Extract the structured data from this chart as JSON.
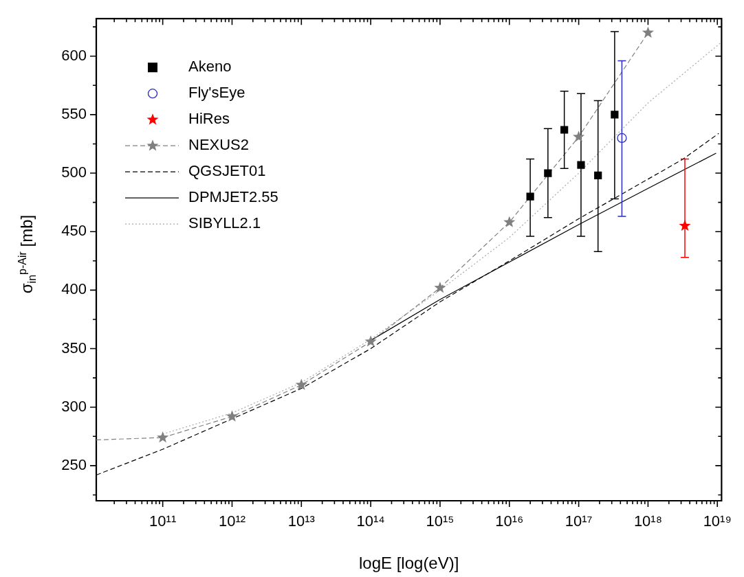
{
  "chart_data": {
    "type": "line",
    "xlabel": "logE [log(eV)]",
    "ylabel": "σ$_{in}$$^{p-Air}$ [mb]",
    "log": "x",
    "xlim": [
      11000000000.0,
      1.15e+19
    ],
    "ylim": [
      220,
      632
    ],
    "xticks": [
      {
        "value": 20000000000.0,
        "label": null
      },
      {
        "value": 30000000000.0,
        "label": null
      },
      {
        "value": 40000000000.0,
        "label": null
      },
      {
        "value": 50000000000.0,
        "label": null
      },
      {
        "value": 60000000000.0,
        "label": null
      },
      {
        "value": 70000000000.0,
        "label": null
      },
      {
        "value": 80000000000.0,
        "label": null
      },
      {
        "value": 90000000000.0,
        "label": null
      },
      {
        "value": 100000000000.0,
        "label": "10¹¹"
      },
      {
        "value": 200000000000.0,
        "label": null
      },
      {
        "value": 300000000000.0,
        "label": null
      },
      {
        "value": 400000000000.0,
        "label": null
      },
      {
        "value": 500000000000.0,
        "label": null
      },
      {
        "value": 600000000000.0,
        "label": null
      },
      {
        "value": 700000000000.0,
        "label": null
      },
      {
        "value": 800000000000.0,
        "label": null
      },
      {
        "value": 900000000000.0,
        "label": null
      },
      {
        "value": 1000000000000.0,
        "label": "10¹²"
      },
      {
        "value": 2000000000000.0,
        "label": null
      },
      {
        "value": 3000000000000.0,
        "label": null
      },
      {
        "value": 4000000000000.0,
        "label": null
      },
      {
        "value": 5000000000000.0,
        "label": null
      },
      {
        "value": 6000000000000.0,
        "label": null
      },
      {
        "value": 7000000000000.0,
        "label": null
      },
      {
        "value": 8000000000000.0,
        "label": null
      },
      {
        "value": 9000000000000.0,
        "label": null
      },
      {
        "value": 10000000000000.0,
        "label": "10¹³"
      },
      {
        "value": 20000000000000.0,
        "label": null
      },
      {
        "value": 30000000000000.0,
        "label": null
      },
      {
        "value": 40000000000000.0,
        "label": null
      },
      {
        "value": 50000000000000.0,
        "label": null
      },
      {
        "value": 60000000000000.0,
        "label": null
      },
      {
        "value": 70000000000000.0,
        "label": null
      },
      {
        "value": 80000000000000.0,
        "label": null
      },
      {
        "value": 90000000000000.0,
        "label": null
      },
      {
        "value": 100000000000000.0,
        "label": "10¹⁴"
      },
      {
        "value": 200000000000000.0,
        "label": null
      },
      {
        "value": 300000000000000.0,
        "label": null
      },
      {
        "value": 400000000000000.0,
        "label": null
      },
      {
        "value": 500000000000000.0,
        "label": null
      },
      {
        "value": 600000000000000.0,
        "label": null
      },
      {
        "value": 700000000000000.0,
        "label": null
      },
      {
        "value": 800000000000000.0,
        "label": null
      },
      {
        "value": 900000000000000.0,
        "label": null
      },
      {
        "value": 1000000000000000.0,
        "label": "10¹⁵"
      },
      {
        "value": 2000000000000000.0,
        "label": null
      },
      {
        "value": 3000000000000000.0,
        "label": null
      },
      {
        "value": 4000000000000000.0,
        "label": null
      },
      {
        "value": 5000000000000000.0,
        "label": null
      },
      {
        "value": 6000000000000000.0,
        "label": null
      },
      {
        "value": 7000000000000000.0,
        "label": null
      },
      {
        "value": 8000000000000000.0,
        "label": null
      },
      {
        "value": 9000000000000000.0,
        "label": null
      },
      {
        "value": 1e+16,
        "label": "10¹⁶"
      },
      {
        "value": 2e+16,
        "label": null
      },
      {
        "value": 3e+16,
        "label": null
      },
      {
        "value": 4e+16,
        "label": null
      },
      {
        "value": 5e+16,
        "label": null
      },
      {
        "value": 6e+16,
        "label": null
      },
      {
        "value": 7e+16,
        "label": null
      },
      {
        "value": 8e+16,
        "label": null
      },
      {
        "value": 9e+16,
        "label": null
      },
      {
        "value": 1e+17,
        "label": "10¹⁷"
      },
      {
        "value": 2e+17,
        "label": null
      },
      {
        "value": 3e+17,
        "label": null
      },
      {
        "value": 4e+17,
        "label": null
      },
      {
        "value": 5e+17,
        "label": null
      },
      {
        "value": 6e+17,
        "label": null
      },
      {
        "value": 7e+17,
        "label": null
      },
      {
        "value": 8e+17,
        "label": null
      },
      {
        "value": 9e+17,
        "label": null
      },
      {
        "value": 1e+18,
        "label": "10¹⁸"
      },
      {
        "value": 2e+18,
        "label": null
      },
      {
        "value": 3e+18,
        "label": null
      },
      {
        "value": 4e+18,
        "label": null
      },
      {
        "value": 5e+18,
        "label": null
      },
      {
        "value": 6e+18,
        "label": null
      },
      {
        "value": 7e+18,
        "label": null
      },
      {
        "value": 8e+18,
        "label": null
      },
      {
        "value": 9e+18,
        "label": null
      },
      {
        "value": 1e+19,
        "label": "10¹⁹"
      }
    ],
    "yticks": [
      {
        "value": 225,
        "label": null
      },
      250,
      {
        "value": 275,
        "label": null
      },
      300,
      {
        "value": 325,
        "label": null
      },
      350,
      {
        "value": 375,
        "label": null
      },
      400,
      {
        "value": 425,
        "label": null
      },
      450,
      {
        "value": 475,
        "label": null
      },
      500,
      {
        "value": 525,
        "label": null
      },
      550,
      {
        "value": 575,
        "label": null
      },
      600,
      {
        "value": 625,
        "label": null
      }
    ],
    "legend": "top left",
    "series": [
      {
        "name": "Akeno",
        "type": "scatter",
        "marker": "square",
        "color": "#000000",
        "x": [
          2e+16,
          3.6e+16,
          6.2e+16,
          1.08e+17,
          1.9e+17,
          3.3e+17
        ],
        "values": [
          480,
          500,
          537,
          507,
          498,
          550
        ],
        "errors": [
          [
            446,
            512
          ],
          [
            462,
            538
          ],
          [
            504,
            570
          ],
          [
            446,
            568
          ],
          [
            433,
            562
          ],
          [
            478,
            621
          ]
        ]
      },
      {
        "name": "Fly'sEye",
        "type": "scatter",
        "marker": "circle",
        "color": "#2b2bc8",
        "x": [
          4.2e+17
        ],
        "values": [
          530
        ],
        "errors": [
          [
            463,
            596
          ]
        ]
      },
      {
        "name": "HiRes",
        "type": "scatter",
        "marker": "star",
        "color": "#ff0000",
        "x": [
          3.4e+18
        ],
        "values": [
          455
        ],
        "errors": [
          [
            428,
            512
          ]
        ]
      },
      {
        "line_style": "dashed",
        "color": "#808080",
        "x": [
          11000000000.0,
          100000000000.0
        ],
        "values": [
          272,
          274
        ]
      },
      {
        "name": "NEXUS2",
        "marker": "star",
        "line_style": "dashed",
        "color": "#808080",
        "x": [
          100000000000.0,
          1000000000000.0,
          10000000000000.0,
          100000000000000.0,
          1000000000000000.0,
          1e+16,
          1e+17,
          1e+18
        ],
        "values": [
          274,
          292,
          319,
          356,
          402,
          458,
          531,
          620
        ]
      },
      {
        "name": "QGSJET01",
        "marker": "none",
        "line_style": "dashed",
        "color": "#000000",
        "x": [
          11000000000.0,
          100000000000.0,
          1000000000000.0,
          10000000000000.0,
          100000000000000.0,
          1000000000000000.0,
          1e+16,
          1e+17,
          3.2e+18,
          1.05e+19
        ],
        "values": [
          242,
          264,
          290,
          316,
          350,
          390,
          425,
          461,
          512,
          534
        ]
      },
      {
        "name": "DPMJET2.55",
        "marker": "none",
        "line_style": "solid",
        "color": "#000000",
        "x": [
          100000000000000.0,
          1000000000000000.0,
          1e+16,
          1e+17,
          1e+18,
          9.6e+18
        ],
        "values": [
          357,
          392,
          424,
          456,
          487,
          517
        ]
      },
      {
        "name": "SIBYLL2.1",
        "marker": "none",
        "line_style": "dotted",
        "color": "#a8a8a8",
        "x": [
          100000000000.0,
          1000000000000.0,
          10000000000000.0,
          100000000000000.0,
          1000000000000000.0,
          1e+16,
          1e+17,
          1e+18,
          1.15e+19
        ],
        "values": [
          277,
          295,
          321,
          358,
          400,
          445,
          500,
          560,
          612
        ]
      }
    ]
  }
}
